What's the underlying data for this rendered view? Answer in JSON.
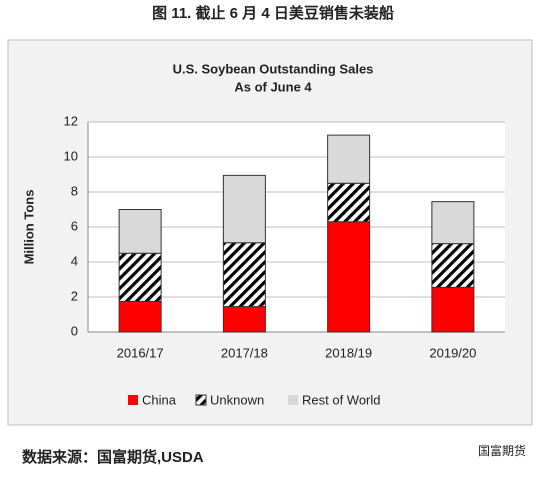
{
  "caption": "图 11. 截止 6 月 4 日美豆销售未装船",
  "chart_data": {
    "type": "stacked_bar",
    "title": "U.S. Soybean Outstanding Sales",
    "subtitle": "As of June 4",
    "y_label": "Million Tons",
    "categories": [
      "2016/17",
      "2017/18",
      "2018/19",
      "2019/20"
    ],
    "series": [
      {
        "name": "China",
        "color": "#ff0000",
        "values": [
          1.75,
          1.45,
          6.3,
          2.55
        ]
      },
      {
        "name": "Unknown",
        "color": "#000000",
        "pattern": "hatch",
        "values": [
          2.75,
          3.65,
          2.2,
          2.5
        ]
      },
      {
        "name": "Rest of World",
        "color": "#d9d9d9",
        "values": [
          2.5,
          3.85,
          2.75,
          2.4
        ]
      }
    ],
    "ylim": [
      0,
      12
    ],
    "yticks": [
      0,
      2,
      4,
      6,
      8,
      10,
      12
    ],
    "grid": true,
    "legend": "bottom"
  },
  "source": "数据来源：国富期货,USDA",
  "brand": "国富期货"
}
